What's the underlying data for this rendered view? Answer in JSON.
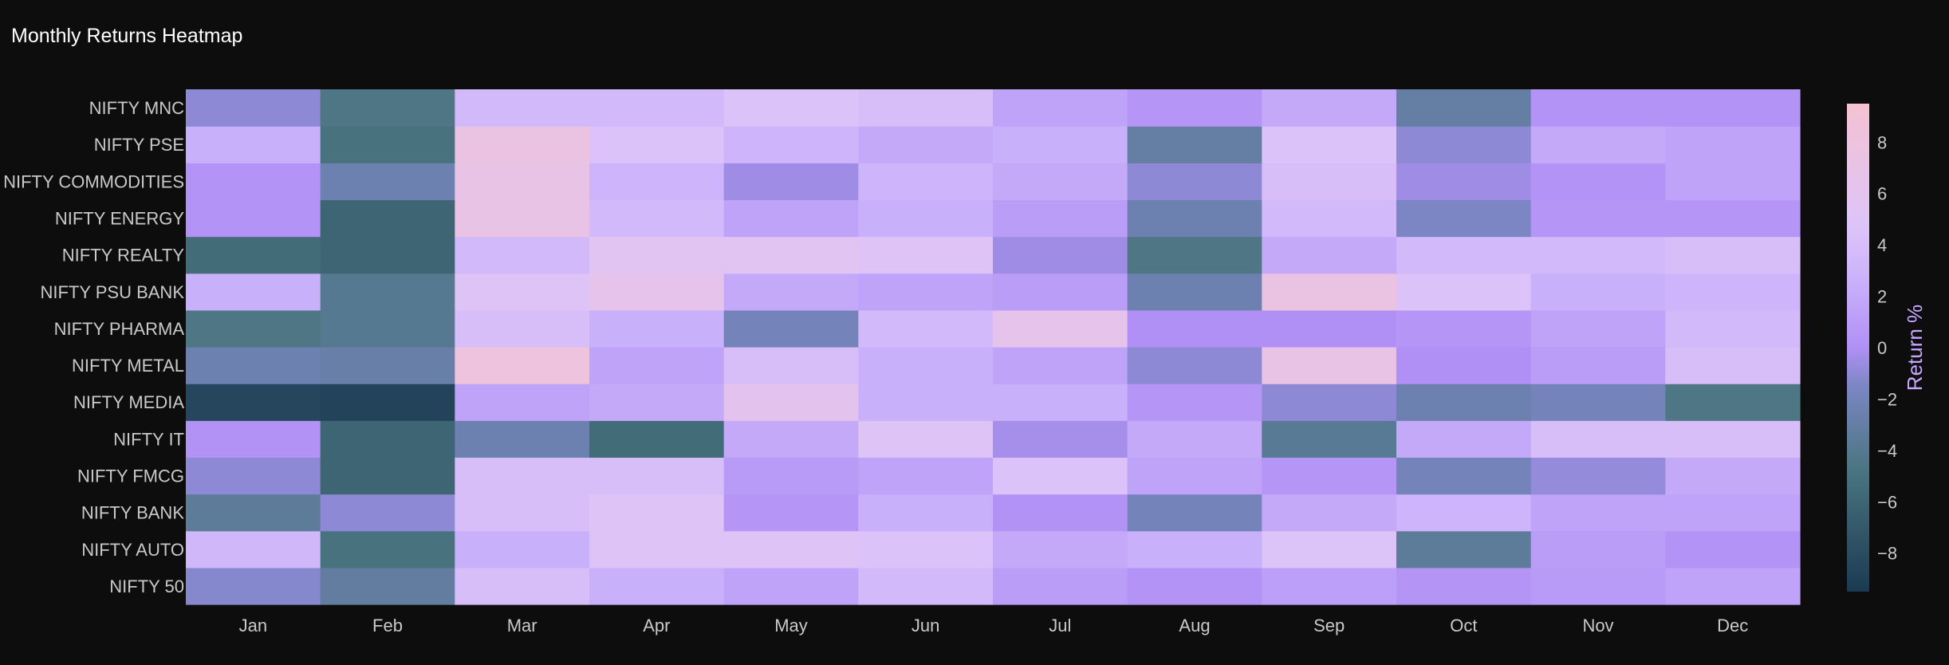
{
  "chart_data": {
    "type": "heatmap",
    "title": "Monthly Returns Heatmap",
    "x_categories": [
      "Jan",
      "Feb",
      "Mar",
      "Apr",
      "May",
      "Jun",
      "Jul",
      "Aug",
      "Sep",
      "Oct",
      "Nov",
      "Dec"
    ],
    "y_categories": [
      "NIFTY 50",
      "NIFTY AUTO",
      "NIFTY BANK",
      "NIFTY FMCG",
      "NIFTY IT",
      "NIFTY MEDIA",
      "NIFTY METAL",
      "NIFTY PHARMA",
      "NIFTY PSU BANK",
      "NIFTY REALTY",
      "NIFTY ENERGY",
      "NIFTY COMMODITIES",
      "NIFTY PSE",
      "NIFTY MNC"
    ],
    "z": [
      [
        -1.2,
        -3.2,
        4.0,
        2.5,
        1.5,
        3.5,
        1.0,
        0.3,
        1.2,
        0.4,
        0.8,
        1.5
      ],
      [
        3.2,
        -5.0,
        2.5,
        5.0,
        5.0,
        4.5,
        2.0,
        2.5,
        4.8,
        -3.5,
        1.0,
        0.3
      ],
      [
        -3.5,
        -1.0,
        4.0,
        5.0,
        0.5,
        2.5,
        0.2,
        -2.0,
        2.0,
        3.0,
        1.5,
        1.5
      ],
      [
        -1.0,
        -6.0,
        4.0,
        4.0,
        0.8,
        1.5,
        4.5,
        1.5,
        0.5,
        -2.0,
        -0.8,
        2.0
      ],
      [
        0.2,
        -6.0,
        -2.5,
        -5.5,
        2.0,
        5.0,
        -0.3,
        2.0,
        -3.8,
        2.0,
        4.0,
        4.0
      ],
      [
        -8.5,
        -8.8,
        1.5,
        2.0,
        6.0,
        2.5,
        2.5,
        0.5,
        -1.0,
        -2.5,
        -2.0,
        -4.5
      ],
      [
        -2.5,
        -2.8,
        8.0,
        1.5,
        4.0,
        2.5,
        1.5,
        -1.0,
        7.0,
        0.0,
        1.0,
        4.0
      ],
      [
        -4.5,
        -4.0,
        4.0,
        2.5,
        -2.0,
        3.5,
        6.5,
        0.0,
        0.0,
        0.5,
        1.5,
        3.5
      ],
      [
        2.5,
        -4.0,
        5.0,
        6.5,
        2.0,
        1.5,
        1.0,
        -2.5,
        7.5,
        4.5,
        2.5,
        3.0
      ],
      [
        -5.5,
        -6.0,
        3.5,
        5.5,
        5.5,
        5.0,
        -0.5,
        -4.5,
        2.0,
        3.5,
        3.5,
        4.0
      ],
      [
        0.3,
        -6.0,
        7.0,
        3.5,
        1.5,
        2.5,
        1.0,
        -2.5,
        3.5,
        -1.5,
        0.5,
        0.5
      ],
      [
        0.3,
        -2.5,
        7.0,
        3.0,
        -0.5,
        3.0,
        2.0,
        -1.0,
        4.0,
        -0.5,
        0.3,
        1.5
      ],
      [
        2.5,
        -5.0,
        7.5,
        4.5,
        3.0,
        2.0,
        2.5,
        -3.0,
        4.5,
        -1.0,
        2.0,
        1.5
      ],
      [
        -1.0,
        -4.5,
        3.5,
        3.5,
        4.5,
        4.0,
        1.5,
        0.5,
        2.0,
        -3.0,
        0.3,
        0.3
      ]
    ],
    "zmin": -9.5,
    "zmax": 9.5,
    "colorbar": {
      "title": "Return %",
      "tick_values": [
        8,
        6,
        4,
        2,
        0,
        -2,
        -4,
        -6,
        -8
      ],
      "tick_labels": [
        "8",
        "6",
        "4",
        "2",
        "0",
        "−2",
        "−4",
        "−6",
        "−8"
      ]
    },
    "colorscale": [
      [
        0.0,
        "#1b3a52"
      ],
      [
        0.25,
        "#4a7580"
      ],
      [
        0.42,
        "#7b86c3"
      ],
      [
        0.5,
        "#b090f5"
      ],
      [
        0.65,
        "#cdb4fb"
      ],
      [
        0.75,
        "#ddc4f8"
      ],
      [
        1.0,
        "#f4c2d2"
      ]
    ],
    "background_color": "#0d0d0d",
    "text_color": "#c9c9c9",
    "colorbar_title_color": "#c9a6ff",
    "legend": "colorbar-right",
    "grid": false
  }
}
